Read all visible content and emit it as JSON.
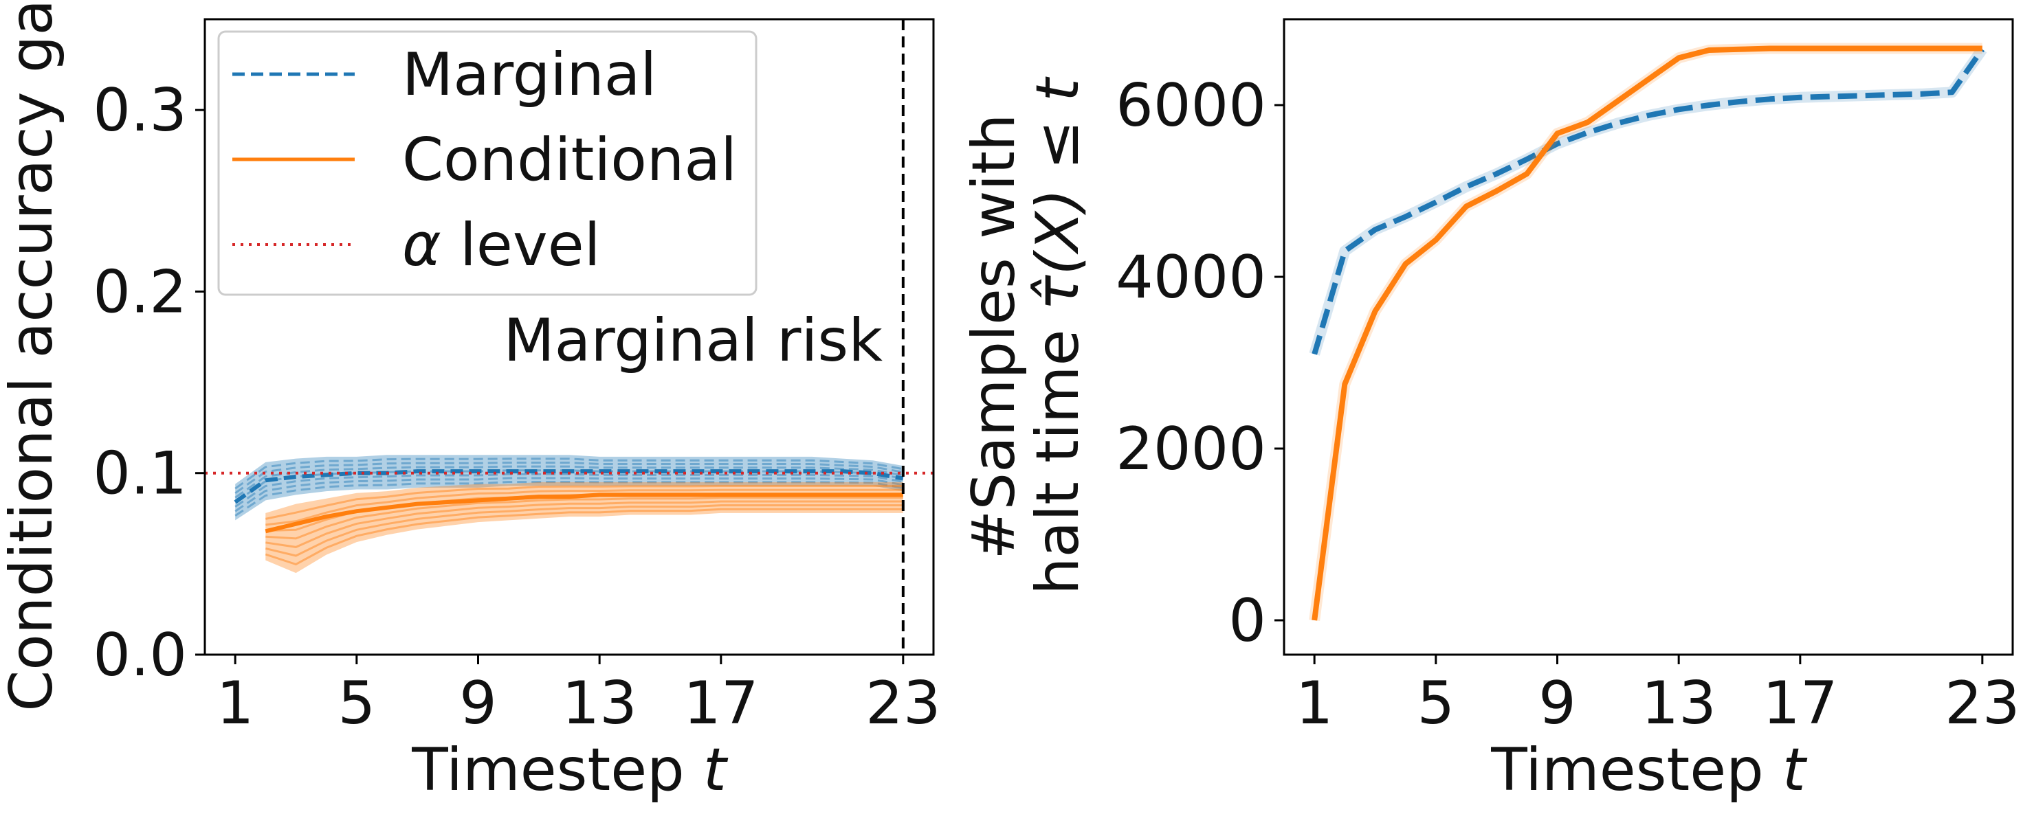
{
  "colors": {
    "marginal": "#1f77b4",
    "conditional": "#ff7f0e",
    "alpha": "#d62728",
    "axis": "#000000"
  },
  "chart_data": [
    {
      "type": "line",
      "title": "",
      "xlabel_text": "Timestep ",
      "xlabel_var": "t",
      "ylabel": "Conditional accuracy gap",
      "xlim": [
        0,
        24
      ],
      "ylim": [
        0,
        0.35
      ],
      "xticks": [
        1,
        5,
        9,
        13,
        17,
        23
      ],
      "xtick_labels": [
        "1",
        "5",
        "9",
        "13",
        "17",
        "23"
      ],
      "yticks": [
        0,
        0.1,
        0.2,
        0.3
      ],
      "ytick_labels": [
        "0.0",
        "0.1",
        "0.2",
        "0.3"
      ],
      "legend_position": "top-left",
      "legend": {
        "marginal": "Marginal",
        "conditional": "Conditional",
        "alpha_symbol": "α",
        "alpha_text": " level"
      },
      "alpha_level": 0.1,
      "vline_x": 23,
      "vline_label": "Marginal risk",
      "x": [
        1,
        2,
        3,
        4,
        5,
        6,
        7,
        8,
        9,
        10,
        11,
        12,
        13,
        14,
        15,
        16,
        17,
        18,
        19,
        20,
        21,
        22,
        23
      ],
      "series": [
        {
          "name": "Marginal",
          "style": "dashed",
          "band": "repeated runs",
          "values": [
            0.084,
            0.096,
            0.098,
            0.099,
            0.1,
            0.1,
            0.101,
            0.101,
            0.101,
            0.101,
            0.101,
            0.101,
            0.101,
            0.101,
            0.101,
            0.101,
            0.101,
            0.101,
            0.101,
            0.101,
            0.101,
            0.1,
            0.097
          ],
          "lower": [
            0.074,
            0.085,
            0.088,
            0.09,
            0.091,
            0.091,
            0.092,
            0.092,
            0.092,
            0.093,
            0.093,
            0.093,
            0.093,
            0.093,
            0.093,
            0.093,
            0.093,
            0.093,
            0.093,
            0.093,
            0.093,
            0.093,
            0.09
          ],
          "upper": [
            0.094,
            0.106,
            0.108,
            0.109,
            0.109,
            0.11,
            0.11,
            0.11,
            0.11,
            0.11,
            0.11,
            0.11,
            0.109,
            0.109,
            0.109,
            0.109,
            0.109,
            0.109,
            0.109,
            0.109,
            0.108,
            0.107,
            0.104
          ]
        },
        {
          "name": "Conditional",
          "style": "solid",
          "band": "repeated runs",
          "values": [
            null,
            0.068,
            0.072,
            0.076,
            0.079,
            0.081,
            0.083,
            0.084,
            0.085,
            0.086,
            0.087,
            0.087,
            0.088,
            0.088,
            0.088,
            0.088,
            0.088,
            0.088,
            0.088,
            0.088,
            0.088,
            0.088,
            0.088
          ],
          "lower": [
            null,
            0.052,
            0.045,
            0.055,
            0.062,
            0.066,
            0.069,
            0.071,
            0.073,
            0.074,
            0.075,
            0.076,
            0.076,
            0.077,
            0.077,
            0.077,
            0.078,
            0.078,
            0.078,
            0.078,
            0.078,
            0.078,
            0.078
          ],
          "upper": [
            null,
            0.078,
            0.083,
            0.086,
            0.089,
            0.09,
            0.092,
            0.093,
            0.094,
            0.094,
            0.095,
            0.095,
            0.095,
            0.095,
            0.095,
            0.095,
            0.095,
            0.095,
            0.095,
            0.095,
            0.095,
            0.095,
            0.095
          ]
        }
      ]
    },
    {
      "type": "line",
      "title": "",
      "xlabel_text": "Timestep ",
      "xlabel_var": "t",
      "ylabel_line1": "#Samples with",
      "ylabel_line2_text": "halt time ",
      "ylabel_line2_math": "τ̂(X) ≤ t",
      "xlim": [
        0,
        24
      ],
      "ylim": [
        -400,
        7000
      ],
      "xticks": [
        1,
        5,
        9,
        13,
        17,
        23
      ],
      "xtick_labels": [
        "1",
        "5",
        "9",
        "13",
        "17",
        "23"
      ],
      "yticks": [
        0,
        2000,
        4000,
        6000
      ],
      "ytick_labels": [
        "0",
        "2000",
        "4000",
        "6000"
      ],
      "x": [
        1,
        2,
        3,
        4,
        5,
        6,
        7,
        8,
        9,
        10,
        11,
        12,
        13,
        14,
        15,
        16,
        17,
        18,
        19,
        20,
        21,
        22,
        23
      ],
      "series": [
        {
          "name": "Marginal",
          "style": "dashed",
          "values": [
            3100,
            4300,
            4550,
            4700,
            4870,
            5050,
            5200,
            5370,
            5550,
            5680,
            5790,
            5880,
            5950,
            6000,
            6040,
            6070,
            6090,
            6100,
            6110,
            6120,
            6130,
            6150,
            6650
          ]
        },
        {
          "name": "Conditional",
          "style": "solid",
          "values": [
            0,
            2750,
            3600,
            4150,
            4430,
            4820,
            5000,
            5200,
            5670,
            5800,
            6050,
            6300,
            6550,
            6640,
            6650,
            6660,
            6660,
            6660,
            6660,
            6660,
            6660,
            6660,
            6660
          ]
        }
      ]
    }
  ]
}
